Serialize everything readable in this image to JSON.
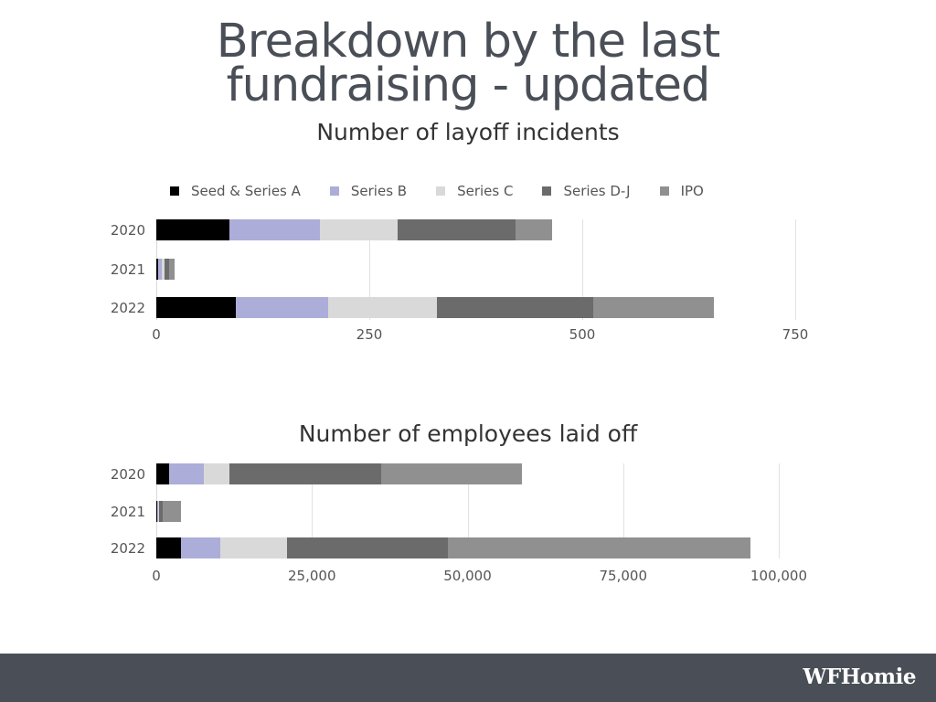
{
  "slide": {
    "title_line1": "Breakdown by the last",
    "title_line2": "fundraising - updated",
    "logo": "WFHomie"
  },
  "legend": [
    {
      "label": "Seed & Series A",
      "color": "#000000"
    },
    {
      "label": "Series B",
      "color": "#adadda"
    },
    {
      "label": "Series C",
      "color": "#d9d9d9"
    },
    {
      "label": "Series D-J",
      "color": "#6b6b6b"
    },
    {
      "label": "IPO",
      "color": "#909090"
    }
  ],
  "chart_data": [
    {
      "type": "bar",
      "orientation": "horizontal",
      "stacked": true,
      "title": "Number of layoff incidents",
      "categories": [
        "2020",
        "2021",
        "2022"
      ],
      "series": [
        {
          "name": "Seed & Series A",
          "values": [
            86,
            2,
            93
          ]
        },
        {
          "name": "Series B",
          "values": [
            106,
            4,
            109
          ]
        },
        {
          "name": "Series C",
          "values": [
            91,
            4,
            127
          ]
        },
        {
          "name": "Series D-J",
          "values": [
            139,
            5,
            184
          ]
        },
        {
          "name": "IPO",
          "values": [
            43,
            7,
            141
          ]
        }
      ],
      "xlim": [
        0,
        750
      ],
      "xticks": [
        "0",
        "250",
        "500",
        "750"
      ],
      "xtick_values": [
        0,
        250,
        500,
        750
      ],
      "grid": true,
      "legend_position": "top"
    },
    {
      "type": "bar",
      "orientation": "horizontal",
      "stacked": true,
      "title": "Number of employees laid off",
      "categories": [
        "2020",
        "2021",
        "2022"
      ],
      "series": [
        {
          "name": "Seed & Series A",
          "values": [
            2000,
            200,
            4000
          ]
        },
        {
          "name": "Series B",
          "values": [
            5600,
            150,
            6300
          ]
        },
        {
          "name": "Series C",
          "values": [
            4100,
            50,
            10700
          ]
        },
        {
          "name": "Series D-J",
          "values": [
            24500,
            600,
            25900
          ]
        },
        {
          "name": "IPO",
          "values": [
            22600,
            2900,
            48500
          ]
        }
      ],
      "xlim": [
        0,
        100000
      ],
      "xticks": [
        "0",
        "25,000",
        "50,000",
        "75,000",
        "100,000"
      ],
      "xtick_values": [
        0,
        25000,
        50000,
        75000,
        100000
      ],
      "grid": true
    }
  ]
}
